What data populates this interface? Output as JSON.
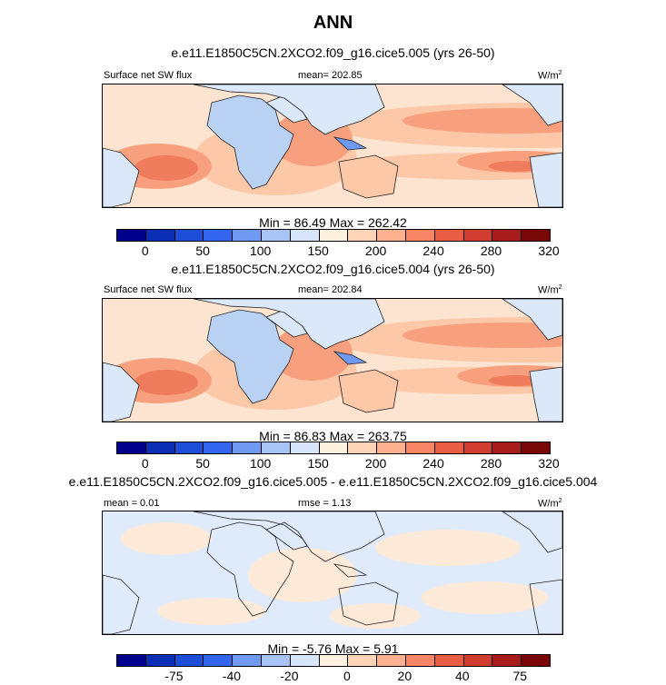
{
  "figure": {
    "title": "ANN",
    "panels": [
      {
        "case": "e.e11.E1850C5CN.2XCO2.f09_g16.cice5.005 (yrs 26-50)",
        "left_label": "Surface net SW flux",
        "center_label": "mean= 202.85",
        "units": "W/m",
        "units_sup": "2",
        "stats": "Min =  86.49 Max = 262.42",
        "colorbar": "abs"
      },
      {
        "case": "e.e11.E1850C5CN.2XCO2.f09_g16.cice5.004 (yrs 26-50)",
        "left_label": "Surface net SW flux",
        "center_label": "mean= 202.84",
        "units": "W/m",
        "units_sup": "2",
        "stats": "Min =  86.83 Max = 263.75",
        "colorbar": "abs"
      },
      {
        "case": "e.e11.E1850C5CN.2XCO2.f09_g16.cice5.005 - e.e11.E1850C5CN.2XCO2.f09_g16.cice5.004",
        "left_label": "mean =   0.01",
        "center_label": "rmse =   1.13",
        "units": "W/m",
        "units_sup": "2",
        "stats": "Min =  -5.76 Max =   5.91",
        "colorbar": "diff"
      }
    ]
  },
  "colorbars": {
    "abs": {
      "colors": [
        "#00008b",
        "#0a2fb4",
        "#1c4ed8",
        "#3366ee",
        "#6f99f3",
        "#a8c4f6",
        "#d7e6fa",
        "#fff1e0",
        "#fed4b7",
        "#fcb08f",
        "#f78566",
        "#ea5d45",
        "#d03c2d",
        "#a81d1c",
        "#7a0707"
      ],
      "ticks": [
        "0",
        "50",
        "100",
        "150",
        "200",
        "240",
        "280",
        "320"
      ],
      "tick_positions": [
        1,
        3,
        5,
        7,
        9,
        11,
        13,
        15
      ]
    },
    "diff": {
      "colors": [
        "#00008b",
        "#0a2fb4",
        "#1c4ed8",
        "#3366ee",
        "#6f99f3",
        "#a8c4f6",
        "#d7e6fa",
        "#fff1e0",
        "#fed4b7",
        "#fcb08f",
        "#f78566",
        "#ea5d45",
        "#d03c2d",
        "#a81d1c",
        "#7a0707"
      ],
      "ticks": [
        "-75",
        "-40",
        "-20",
        "0",
        "20",
        "40",
        "75"
      ],
      "tick_positions": [
        2,
        4,
        6,
        8,
        10,
        12,
        14
      ]
    }
  },
  "fill_colors": {
    "ocean_base": "#fde4d0",
    "warm1": "#fcc8a8",
    "warm2": "#f8a07e",
    "warm3": "#ef7c5c",
    "cool_land": "#b9d2f4",
    "pale_land": "#dbe8f9",
    "diff_base": "#dfeafb",
    "diff_warm": "#fde9d8"
  }
}
